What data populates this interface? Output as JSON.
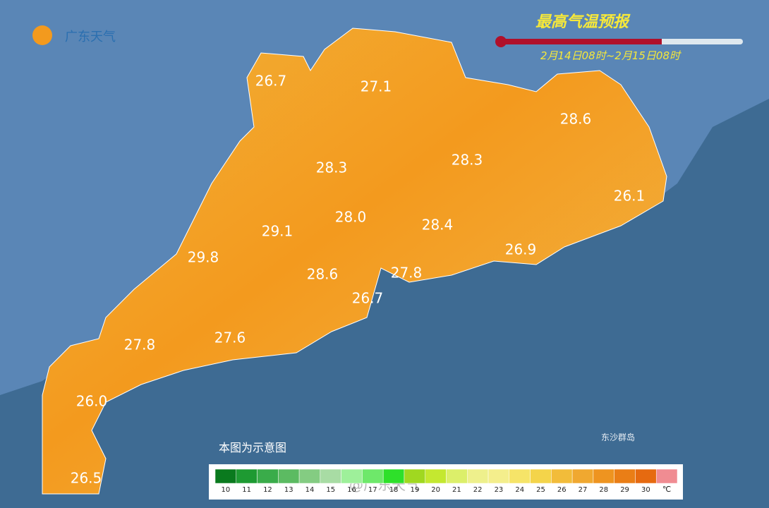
{
  "header": {
    "logo": "广东天气",
    "title": "最高气温预报",
    "period": "2月14日08时~2月15日08时"
  },
  "map": {
    "labels": [
      "26.7",
      "27.1",
      "28.6",
      "28.3",
      "28.3",
      "26.1",
      "28.0",
      "29.1",
      "28.4",
      "29.8",
      "26.9",
      "28.6",
      "27.8",
      "26.7",
      "27.8",
      "27.6",
      "26.0",
      "26.5"
    ],
    "note": "本图为示意图",
    "island": "东沙群岛",
    "watermark": "@广东天气"
  },
  "legend": {
    "ticks": [
      10,
      11,
      12,
      13,
      14,
      15,
      16,
      17,
      18,
      19,
      20,
      21,
      22,
      23,
      24,
      25,
      26,
      27,
      28,
      29,
      30
    ],
    "unit": "℃",
    "colors": [
      "#0a7a1e",
      "#1e9a32",
      "#3aac4a",
      "#5cbb62",
      "#84cc82",
      "#a8dca4",
      "#9ef09a",
      "#6ee86a",
      "#2ee02a",
      "#a0d820",
      "#c4e830",
      "#dcef6a",
      "#eef08c",
      "#f4ee8c",
      "#f6e468",
      "#f4d44a",
      "#f2bc3a",
      "#f0a830",
      "#ee9420",
      "#ea7e16",
      "#e66a10",
      "#f08c92"
    ]
  }
}
